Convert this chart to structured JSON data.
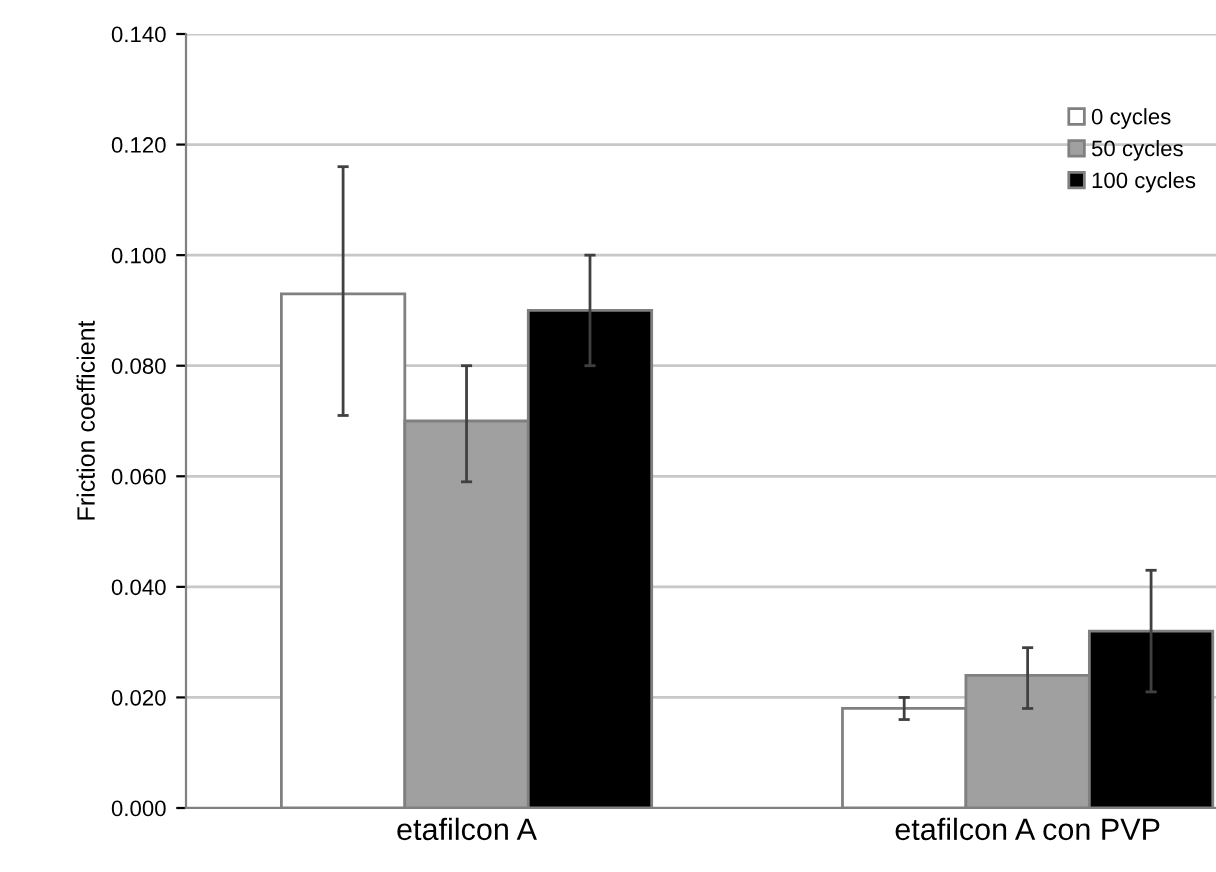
{
  "chart_data": {
    "type": "bar",
    "ylabel": "Friction coefficient",
    "categories": [
      "etafilcon A",
      "etafilcon A con PVP"
    ],
    "series": [
      {
        "name": "0 cycles",
        "color": "#ffffff",
        "values": [
          0.093,
          0.018
        ],
        "errors": [
          [
            0.071,
            0.116
          ],
          [
            0.016,
            0.02
          ]
        ]
      },
      {
        "name": "50 cycles",
        "color": "#a0a0a0",
        "values": [
          0.07,
          0.024
        ],
        "errors": [
          [
            0.059,
            0.08
          ],
          [
            0.018,
            0.029
          ]
        ]
      },
      {
        "name": "100 cycles",
        "color": "#000000",
        "values": [
          0.09,
          0.032
        ],
        "errors": [
          0.01,
          0.011
        ]
      }
    ],
    "ylim": [
      0,
      0.14
    ],
    "yticks": [
      {
        "value": 0,
        "label": "0.000"
      },
      {
        "value": 0.02,
        "label": "0.020"
      },
      {
        "value": 0.04,
        "label": "0.040"
      },
      {
        "value": 0.06,
        "label": "0.060"
      },
      {
        "value": 0.08,
        "label": "0.080"
      },
      {
        "value": 0.1,
        "label": "0.100"
      },
      {
        "value": 0.12,
        "label": "0.120"
      },
      {
        "value": 0.14,
        "label": "0.140"
      }
    ],
    "grid": "y",
    "legend": "top right"
  }
}
